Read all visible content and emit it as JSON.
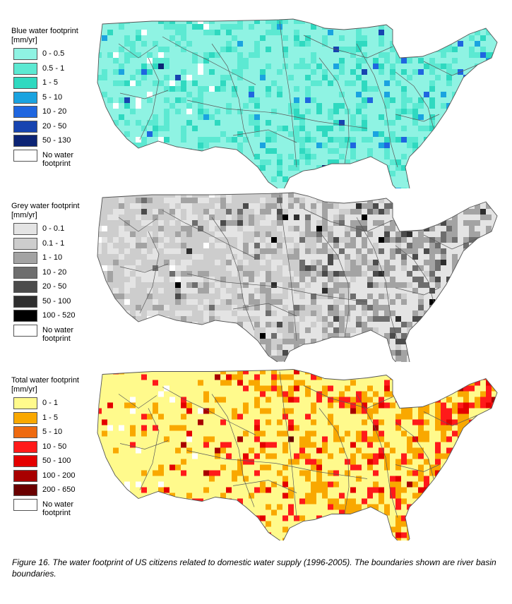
{
  "caption": "Figure 16. The water footprint of US citizens related to domestic water supply (1996-2005). The boundaries shown are river basin boundaries.",
  "maps": [
    {
      "title": "Blue water footprint",
      "unit": "[mm/yr]",
      "legend": [
        {
          "label": "0 - 0.5",
          "color": "#8ff3e3"
        },
        {
          "label": "0.5 - 1",
          "color": "#5ce9d2"
        },
        {
          "label": "1 - 5",
          "color": "#2fd9c0"
        },
        {
          "label": "5 - 10",
          "color": "#1aa3e0"
        },
        {
          "label": "10 - 20",
          "color": "#1f66e0"
        },
        {
          "label": "20 - 50",
          "color": "#1744b0"
        },
        {
          "label": "50 - 130",
          "color": "#0c2475"
        },
        {
          "label": "No water footprint",
          "color": "#ffffff"
        }
      ]
    },
    {
      "title": "Grey water footprint",
      "unit": "[mm/yr]",
      "legend": [
        {
          "label": "0 - 0.1",
          "color": "#e4e4e4"
        },
        {
          "label": "0.1 - 1",
          "color": "#cdcdcd"
        },
        {
          "label": "1 - 10",
          "color": "#a3a3a3"
        },
        {
          "label": "10 - 20",
          "color": "#6e6e6e"
        },
        {
          "label": "20 - 50",
          "color": "#4b4b4b"
        },
        {
          "label": "50 - 100",
          "color": "#2e2e2e"
        },
        {
          "label": "100 - 520",
          "color": "#000000"
        },
        {
          "label": "No water footprint",
          "color": "#ffffff"
        }
      ]
    },
    {
      "title": "Total water footprint",
      "unit": "[mm/yr]",
      "legend": [
        {
          "label": "0 - 1",
          "color": "#fffa8c"
        },
        {
          "label": "1 - 5",
          "color": "#f9a800"
        },
        {
          "label": "5 - 10",
          "color": "#ee6a10"
        },
        {
          "label": "10 - 50",
          "color": "#ff1a1a"
        },
        {
          "label": "50 - 100",
          "color": "#e40000"
        },
        {
          "label": "100 - 200",
          "color": "#a80000"
        },
        {
          "label": "200 - 650",
          "color": "#6a0000"
        },
        {
          "label": "No water footprint",
          "color": "#ffffff"
        }
      ]
    }
  ]
}
